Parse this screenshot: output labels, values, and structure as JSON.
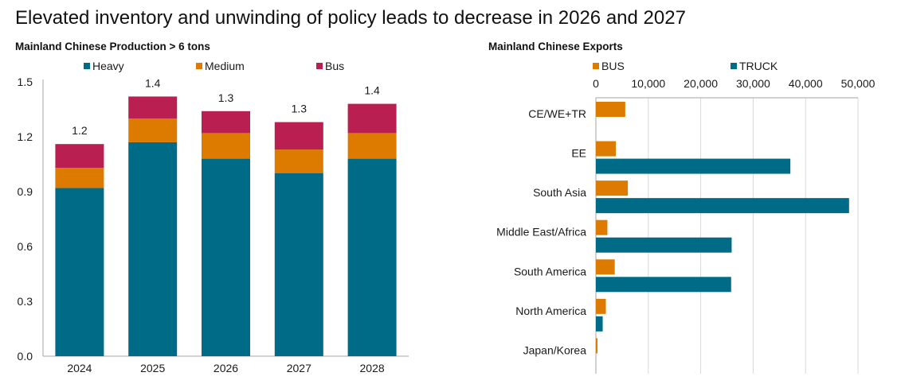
{
  "title": "Elevated inventory and unwinding of policy leads to decrease in 2026 and 2027",
  "colors": {
    "heavy": "#006B87",
    "medium": "#DD7A00",
    "bus": "#BA1F52",
    "truck": "#006B87",
    "axis": "#a6a6a6",
    "grid": "#d9d9d9"
  },
  "chart_data": [
    {
      "type": "bar",
      "stacked": true,
      "title": "Mainland Chinese Production > 6 tons",
      "xlabel": "",
      "ylabel": "",
      "categories": [
        "2024",
        "2025",
        "2026",
        "2027",
        "2028"
      ],
      "series": [
        {
          "name": "Heavy",
          "color": "#006B87",
          "values": [
            0.92,
            1.17,
            1.08,
            1.0,
            1.08
          ]
        },
        {
          "name": "Medium",
          "color": "#DD7A00",
          "values": [
            0.11,
            0.13,
            0.14,
            0.13,
            0.14
          ]
        },
        {
          "name": "Bus",
          "color": "#BA1F52",
          "values": [
            0.13,
            0.12,
            0.12,
            0.15,
            0.16
          ]
        }
      ],
      "total_labels": [
        "1.2",
        "1.4",
        "1.3",
        "1.3",
        "1.4"
      ],
      "ylim": [
        0,
        1.5
      ],
      "yticks": [
        "0.0",
        "0.3",
        "0.6",
        "0.9",
        "1.2",
        "1.5"
      ],
      "ytick_values": [
        0,
        0.3,
        0.6,
        0.9,
        1.2,
        1.5
      ],
      "grid": false,
      "legend_position": "top"
    },
    {
      "type": "bar",
      "orientation": "horizontal",
      "title": "Mainland Chinese Exports",
      "xlabel": "",
      "ylabel": "",
      "categories": [
        "CE/WE+TR",
        "EE",
        "South Asia",
        "Middle East/Africa",
        "South America",
        "North America",
        "Japan/Korea"
      ],
      "series": [
        {
          "name": "BUS",
          "color": "#DD7A00",
          "values": [
            5600,
            3800,
            6100,
            2200,
            3600,
            1900,
            300
          ]
        },
        {
          "name": "TRUCK",
          "color": "#006B87",
          "values": [
            0,
            37100,
            48300,
            25900,
            25800,
            1300,
            0
          ]
        }
      ],
      "xlim": [
        0,
        50000
      ],
      "xticks": [
        "0",
        "10,000",
        "20,000",
        "30,000",
        "40,000",
        "50,000"
      ],
      "xtick_values": [
        0,
        10000,
        20000,
        30000,
        40000,
        50000
      ],
      "xaxis_position": "top",
      "grid": true,
      "legend_position": "top"
    }
  ]
}
